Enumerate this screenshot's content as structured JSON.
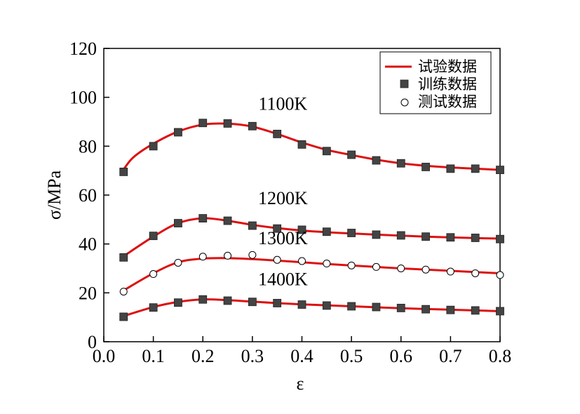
{
  "chart_data": {
    "type": "line",
    "xlabel": "ε",
    "ylabel": "σ/MPa",
    "xlim": [
      0.0,
      0.8
    ],
    "ylim": [
      0,
      120
    ],
    "xticks": [
      "0.0",
      "0.1",
      "0.2",
      "0.3",
      "0.4",
      "0.5",
      "0.6",
      "0.7",
      "0.8"
    ],
    "yticks": [
      "0",
      "20",
      "40",
      "60",
      "80",
      "100",
      "120"
    ],
    "grid": false,
    "legend": {
      "placement": "top-right",
      "entries": [
        {
          "label": "试验数据",
          "marker": "line",
          "color": "#dd1111"
        },
        {
          "label": "训练数据",
          "marker": "filled-square",
          "color": "#444444"
        },
        {
          "label": "测试数据",
          "marker": "open-circle",
          "color": "#000000"
        }
      ]
    },
    "series": [
      {
        "name": "1100K",
        "curve_x": [
          0.04,
          0.06,
          0.1,
          0.15,
          0.2,
          0.25,
          0.3,
          0.35,
          0.4,
          0.45,
          0.5,
          0.55,
          0.6,
          0.65,
          0.7,
          0.75,
          0.8
        ],
        "curve_y": [
          70.5,
          75.5,
          81,
          86,
          88.8,
          89.2,
          88,
          85,
          81.5,
          78.5,
          76.4,
          74.5,
          73,
          72,
          71.3,
          70.8,
          70.3
        ],
        "marker": "square",
        "points_x": [
          0.04,
          0.1,
          0.15,
          0.2,
          0.25,
          0.3,
          0.35,
          0.4,
          0.45,
          0.5,
          0.55,
          0.6,
          0.65,
          0.7,
          0.75,
          0.8
        ],
        "points_y": [
          69.5,
          80,
          85.7,
          89.5,
          89.3,
          88.2,
          85,
          80.7,
          78,
          76.5,
          74.2,
          73,
          71.5,
          70.8,
          70.8,
          70.3
        ]
      },
      {
        "name": "1200K",
        "curve_x": [
          0.04,
          0.1,
          0.15,
          0.2,
          0.25,
          0.3,
          0.35,
          0.4,
          0.45,
          0.5,
          0.55,
          0.6,
          0.65,
          0.7,
          0.75,
          0.8
        ],
        "curve_y": [
          35,
          43,
          48.5,
          50.5,
          49.5,
          47.8,
          46.5,
          45.5,
          44.8,
          44.3,
          43.8,
          43.4,
          43,
          42.7,
          42.4,
          42.2
        ],
        "marker": "square",
        "points_x": [
          0.04,
          0.1,
          0.15,
          0.2,
          0.25,
          0.3,
          0.35,
          0.4,
          0.45,
          0.5,
          0.55,
          0.6,
          0.65,
          0.7,
          0.75,
          0.8
        ],
        "points_y": [
          34.5,
          43.3,
          48.5,
          50.5,
          49.5,
          47.5,
          46.3,
          45.8,
          45,
          44.5,
          43.8,
          43.5,
          43,
          42.7,
          42.5,
          42
        ]
      },
      {
        "name": "1300K",
        "curve_x": [
          0.04,
          0.1,
          0.15,
          0.2,
          0.25,
          0.3,
          0.35,
          0.4,
          0.45,
          0.5,
          0.55,
          0.6,
          0.65,
          0.7,
          0.75,
          0.8
        ],
        "curve_y": [
          21,
          28,
          32.5,
          34,
          34.2,
          33.8,
          33.2,
          32.5,
          31.8,
          31.2,
          30.6,
          30,
          29.5,
          29,
          28.5,
          28
        ],
        "marker": "circle",
        "points_x": [
          0.04,
          0.1,
          0.15,
          0.2,
          0.25,
          0.3,
          0.35,
          0.4,
          0.45,
          0.5,
          0.55,
          0.6,
          0.65,
          0.7,
          0.75,
          0.8
        ],
        "points_y": [
          20.5,
          27.7,
          32.3,
          34.8,
          35.2,
          35.5,
          33.5,
          33,
          32,
          31.2,
          30.6,
          30,
          29.5,
          28.7,
          28,
          27.3
        ]
      },
      {
        "name": "1400K",
        "curve_x": [
          0.04,
          0.1,
          0.15,
          0.2,
          0.25,
          0.3,
          0.35,
          0.4,
          0.45,
          0.5,
          0.55,
          0.6,
          0.65,
          0.7,
          0.75,
          0.8
        ],
        "curve_y": [
          10.5,
          14.2,
          16.3,
          17.3,
          17,
          16.4,
          15.8,
          15.3,
          14.9,
          14.5,
          14.1,
          13.7,
          13.4,
          13.1,
          12.8,
          12.5
        ],
        "marker": "square",
        "points_x": [
          0.04,
          0.1,
          0.15,
          0.2,
          0.25,
          0.3,
          0.35,
          0.4,
          0.45,
          0.5,
          0.55,
          0.6,
          0.65,
          0.7,
          0.75,
          0.8
        ],
        "points_y": [
          10.2,
          14,
          16,
          17.3,
          16.8,
          16.3,
          15.8,
          15.2,
          14.8,
          14.5,
          14.2,
          13.8,
          13.3,
          13,
          12.8,
          12.5
        ]
      }
    ]
  },
  "colors": {
    "curve": "#dd1111",
    "square_fill": "#444444",
    "circle_fill": "#ffffff",
    "axis": "#000000"
  }
}
